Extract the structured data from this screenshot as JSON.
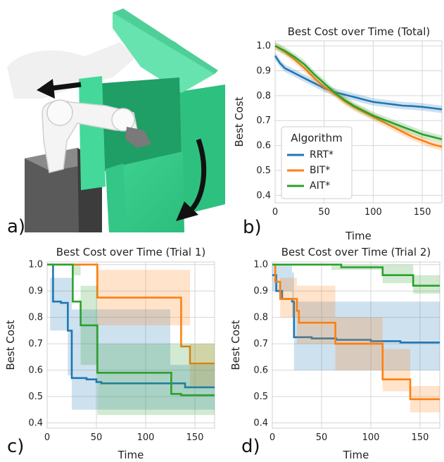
{
  "panels": {
    "a": {
      "letter": "a)"
    },
    "b": {
      "letter": "b)"
    },
    "c": {
      "letter": "c)"
    },
    "d": {
      "letter": "d)"
    }
  },
  "colors": {
    "RRT*": "#1f77b4",
    "BIT*": "#ff7f0e",
    "AIT*": "#2ca02c"
  },
  "chart_data": [
    {
      "id": "b",
      "type": "line",
      "title": "Best Cost over Time (Total)",
      "xlabel": "Time",
      "ylabel": "Best Cost",
      "xlim": [
        0,
        170
      ],
      "ylim": [
        0.37,
        1.02
      ],
      "xticks": [
        0,
        50,
        100,
        150
      ],
      "yticks": [
        0.4,
        0.5,
        0.6,
        0.7,
        0.8,
        0.9,
        1.0
      ],
      "ytick_labels": [
        "0.4",
        "0.5",
        "0.6",
        "0.7",
        "0.8",
        "0.9",
        "1.0"
      ],
      "grid": true,
      "legend": {
        "title": "Algorithm",
        "placement": "lower-left",
        "entries": [
          "RRT*",
          "BIT*",
          "AIT*"
        ]
      },
      "series": [
        {
          "name": "RRT*",
          "band": 0.015,
          "points": [
            [
              0,
              0.96
            ],
            [
              5,
              0.93
            ],
            [
              10,
              0.91
            ],
            [
              20,
              0.89
            ],
            [
              30,
              0.87
            ],
            [
              40,
              0.85
            ],
            [
              50,
              0.83
            ],
            [
              60,
              0.815
            ],
            [
              70,
              0.805
            ],
            [
              80,
              0.795
            ],
            [
              90,
              0.785
            ],
            [
              100,
              0.775
            ],
            [
              110,
              0.77
            ],
            [
              120,
              0.765
            ],
            [
              130,
              0.76
            ],
            [
              140,
              0.758
            ],
            [
              150,
              0.755
            ],
            [
              160,
              0.75
            ],
            [
              170,
              0.745
            ]
          ]
        },
        {
          "name": "BIT*",
          "band": 0.015,
          "points": [
            [
              0,
              1.0
            ],
            [
              10,
              0.975
            ],
            [
              20,
              0.945
            ],
            [
              30,
              0.91
            ],
            [
              40,
              0.87
            ],
            [
              50,
              0.835
            ],
            [
              60,
              0.81
            ],
            [
              70,
              0.78
            ],
            [
              80,
              0.755
            ],
            [
              90,
              0.735
            ],
            [
              100,
              0.715
            ],
            [
              110,
              0.695
            ],
            [
              120,
              0.675
            ],
            [
              130,
              0.655
            ],
            [
              140,
              0.635
            ],
            [
              150,
              0.62
            ],
            [
              160,
              0.605
            ],
            [
              170,
              0.595
            ]
          ]
        },
        {
          "name": "AIT*",
          "band": 0.015,
          "points": [
            [
              0,
              1.0
            ],
            [
              10,
              0.98
            ],
            [
              20,
              0.955
            ],
            [
              30,
              0.925
            ],
            [
              40,
              0.885
            ],
            [
              50,
              0.85
            ],
            [
              60,
              0.815
            ],
            [
              70,
              0.785
            ],
            [
              80,
              0.76
            ],
            [
              90,
              0.74
            ],
            [
              100,
              0.72
            ],
            [
              110,
              0.705
            ],
            [
              120,
              0.69
            ],
            [
              130,
              0.675
            ],
            [
              140,
              0.66
            ],
            [
              150,
              0.645
            ],
            [
              160,
              0.635
            ],
            [
              170,
              0.625
            ]
          ]
        }
      ]
    },
    {
      "id": "c",
      "type": "line",
      "title": "Best Cost over Time (Trial 1)",
      "xlabel": "Time",
      "ylabel": "Best Cost",
      "xlim": [
        0,
        170
      ],
      "ylim": [
        0.38,
        1.01
      ],
      "xticks": [
        0,
        50,
        100,
        150
      ],
      "yticks": [
        0.4,
        0.5,
        0.6,
        0.7,
        0.8,
        0.9,
        1.0
      ],
      "ytick_labels": [
        "0.4",
        "0.5",
        "0.6",
        "0.7",
        "0.8",
        "0.9",
        "1.0"
      ],
      "grid": true,
      "series": [
        {
          "name": "RRT*",
          "step": true,
          "points": [
            [
              3,
              1.0
            ],
            [
              6,
              0.86
            ],
            [
              14,
              0.855
            ],
            [
              21,
              0.75
            ],
            [
              25,
              0.57
            ],
            [
              40,
              0.565
            ],
            [
              50,
              0.555
            ],
            [
              55,
              0.55
            ],
            [
              60,
              0.55
            ],
            [
              125,
              0.55
            ],
            [
              140,
              0.535
            ],
            [
              170,
              0.535
            ]
          ],
          "band_lower": [
            [
              3,
              0.75
            ],
            [
              21,
              0.58
            ],
            [
              25,
              0.45
            ],
            [
              125,
              0.45
            ],
            [
              170,
              0.43
            ]
          ],
          "band_upper": [
            [
              3,
              0.95
            ],
            [
              21,
              0.95
            ],
            [
              25,
              0.83
            ],
            [
              125,
              0.62
            ],
            [
              170,
              0.62
            ]
          ]
        },
        {
          "name": "BIT*",
          "step": true,
          "points": [
            [
              0,
              1.0
            ],
            [
              50,
              1.0
            ],
            [
              51,
              0.875
            ],
            [
              135,
              0.875
            ],
            [
              136,
              0.69
            ],
            [
              145,
              0.625
            ],
            [
              170,
              0.625
            ]
          ],
          "band_lower": [
            [
              0,
              1.0
            ],
            [
              50,
              0.97
            ],
            [
              51,
              0.77
            ],
            [
              135,
              0.77
            ],
            [
              145,
              0.54
            ],
            [
              170,
              0.54
            ]
          ],
          "band_upper": [
            [
              0,
              1.0
            ],
            [
              50,
              1.0
            ],
            [
              51,
              0.98
            ],
            [
              135,
              0.98
            ],
            [
              145,
              0.7
            ],
            [
              170,
              0.7
            ]
          ]
        },
        {
          "name": "AIT*",
          "step": true,
          "points": [
            [
              0,
              1.0
            ],
            [
              25,
              1.0
            ],
            [
              26,
              0.86
            ],
            [
              33,
              0.86
            ],
            [
              34,
              0.77
            ],
            [
              50,
              0.77
            ],
            [
              51,
              0.59
            ],
            [
              125,
              0.59
            ],
            [
              126,
              0.51
            ],
            [
              135,
              0.51
            ],
            [
              136,
              0.505
            ],
            [
              170,
              0.505
            ]
          ],
          "band_lower": [
            [
              0,
              1.0
            ],
            [
              25,
              0.96
            ],
            [
              34,
              0.62
            ],
            [
              51,
              0.43
            ],
            [
              170,
              0.41
            ]
          ],
          "band_upper": [
            [
              0,
              1.0
            ],
            [
              25,
              1.0
            ],
            [
              34,
              0.92
            ],
            [
              51,
              0.7
            ],
            [
              170,
              0.66
            ]
          ]
        }
      ]
    },
    {
      "id": "d",
      "type": "line",
      "title": "Best Cost over Time (Trial 2)",
      "xlabel": "Time",
      "ylabel": "Best Cost",
      "xlim": [
        0,
        170
      ],
      "ylim": [
        0.38,
        1.01
      ],
      "xticks": [
        0,
        50,
        100,
        150
      ],
      "yticks": [
        0.4,
        0.5,
        0.6,
        0.7,
        0.8,
        0.9,
        1.0
      ],
      "ytick_labels": [
        "0.4",
        "0.5",
        "0.6",
        "0.7",
        "0.8",
        "0.9",
        "1.0"
      ],
      "grid": true,
      "series": [
        {
          "name": "RRT*",
          "step": true,
          "points": [
            [
              0,
              0.96
            ],
            [
              4,
              0.9
            ],
            [
              10,
              0.87
            ],
            [
              20,
              0.86
            ],
            [
              22,
              0.725
            ],
            [
              40,
              0.72
            ],
            [
              65,
              0.715
            ],
            [
              100,
              0.71
            ],
            [
              130,
              0.705
            ],
            [
              170,
              0.705
            ]
          ],
          "band_lower": [
            [
              0,
              0.9
            ],
            [
              20,
              0.8
            ],
            [
              22,
              0.6
            ],
            [
              170,
              0.57
            ]
          ],
          "band_upper": [
            [
              0,
              1.0
            ],
            [
              20,
              0.97
            ],
            [
              22,
              0.86
            ],
            [
              170,
              0.84
            ]
          ]
        },
        {
          "name": "BIT*",
          "step": true,
          "points": [
            [
              0,
              1.0
            ],
            [
              3,
              0.935
            ],
            [
              8,
              0.87
            ],
            [
              23,
              0.87
            ],
            [
              25,
              0.825
            ],
            [
              27,
              0.78
            ],
            [
              62,
              0.78
            ],
            [
              64,
              0.7
            ],
            [
              110,
              0.7
            ],
            [
              112,
              0.565
            ],
            [
              138,
              0.565
            ],
            [
              140,
              0.49
            ],
            [
              170,
              0.49
            ]
          ],
          "band_lower": [
            [
              0,
              1.0
            ],
            [
              8,
              0.8
            ],
            [
              25,
              0.7
            ],
            [
              64,
              0.6
            ],
            [
              112,
              0.52
            ],
            [
              140,
              0.44
            ],
            [
              170,
              0.44
            ]
          ],
          "band_upper": [
            [
              0,
              1.0
            ],
            [
              8,
              0.95
            ],
            [
              25,
              0.92
            ],
            [
              64,
              0.8
            ],
            [
              112,
              0.68
            ],
            [
              140,
              0.54
            ],
            [
              170,
              0.54
            ]
          ]
        },
        {
          "name": "AIT*",
          "step": true,
          "points": [
            [
              0,
              1.0
            ],
            [
              60,
              1.0
            ],
            [
              70,
              0.99
            ],
            [
              110,
              0.99
            ],
            [
              112,
              0.96
            ],
            [
              140,
              0.96
            ],
            [
              143,
              0.92
            ],
            [
              170,
              0.92
            ]
          ],
          "band_lower": [
            [
              0,
              1.0
            ],
            [
              60,
              0.98
            ],
            [
              112,
              0.93
            ],
            [
              143,
              0.89
            ],
            [
              170,
              0.89
            ]
          ],
          "band_upper": [
            [
              0,
              1.0
            ],
            [
              112,
              1.0
            ],
            [
              143,
              0.96
            ],
            [
              170,
              0.96
            ]
          ]
        }
      ]
    }
  ]
}
